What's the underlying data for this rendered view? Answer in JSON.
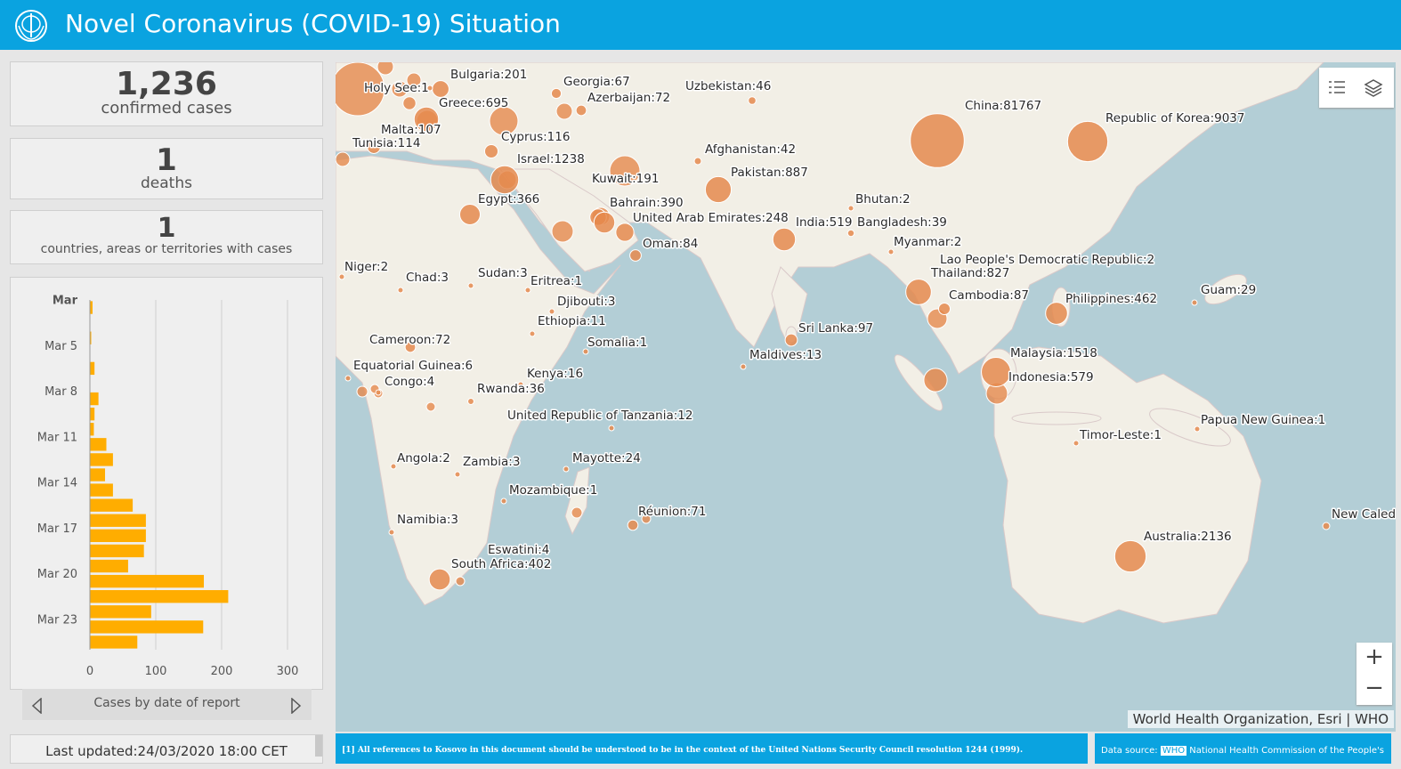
{
  "header": {
    "title": "Novel Coronavirus (COVID-19) Situation"
  },
  "stats": [
    {
      "number": "1,236",
      "caption": "confirmed cases"
    },
    {
      "number": "1",
      "caption": "deaths"
    },
    {
      "number": "1",
      "caption": "countries, areas or territories with cases"
    }
  ],
  "chart_data": {
    "type": "bar",
    "orientation": "horizontal",
    "title": "Cases by date of report",
    "categories": [
      "Mar",
      null,
      null,
      "Mar 5",
      null,
      null,
      "Mar 8",
      null,
      null,
      "Mar 11",
      null,
      null,
      "Mar 14",
      null,
      null,
      "Mar 17",
      null,
      null,
      "Mar 20",
      null,
      null,
      "Mar 23",
      null
    ],
    "values": [
      4,
      0,
      2,
      0,
      7,
      0,
      13,
      7,
      6,
      25,
      35,
      23,
      35,
      65,
      85,
      85,
      82,
      58,
      173,
      210,
      93,
      172,
      72
    ],
    "color": "#ffad00",
    "xlim": [
      0,
      300
    ],
    "xticks": [
      0,
      100,
      200,
      300
    ],
    "grid": true
  },
  "last_updated": "Last updated:24/03/2020 18:00 CET",
  "map": {
    "markers": [
      {
        "label": "Bulgaria:201",
        "value": 201
      },
      {
        "label": "Holy See:1",
        "value": 1
      },
      {
        "label": "Georgia:67",
        "value": 67
      },
      {
        "label": "Azerbaijan:72",
        "value": 72
      },
      {
        "label": "Uzbekistan:46",
        "value": 46
      },
      {
        "label": "Greece:695",
        "value": 695
      },
      {
        "label": "Malta:107",
        "value": 107
      },
      {
        "label": "Tunisia:114",
        "value": 114
      },
      {
        "label": "Cyprus:116",
        "value": 116
      },
      {
        "label": "Israel:1238",
        "value": 1238
      },
      {
        "label": "China:81767",
        "value": 81767
      },
      {
        "label": "Republic of Korea:9037",
        "value": 9037
      },
      {
        "label": "Afghanistan:42",
        "value": 42
      },
      {
        "label": "Kuwait:191",
        "value": 191
      },
      {
        "label": "Pakistan:887",
        "value": 887
      },
      {
        "label": "Egypt:366",
        "value": 366
      },
      {
        "label": "Bahrain:390",
        "value": 390
      },
      {
        "label": "Bhutan:2",
        "value": 2
      },
      {
        "label": "United Arab Emirates:248",
        "value": 248
      },
      {
        "label": "India:519",
        "value": 519
      },
      {
        "label": "Bangladesh:39",
        "value": 39
      },
      {
        "label": "Oman:84",
        "value": 84
      },
      {
        "label": "Myanmar:2",
        "value": 2
      },
      {
        "label": "Niger:2",
        "value": 2
      },
      {
        "label": "Chad:3",
        "value": 3
      },
      {
        "label": "Sudan:3",
        "value": 3
      },
      {
        "label": "Eritrea:1",
        "value": 1
      },
      {
        "label": "Lao People's Democratic Republic:2",
        "value": 2
      },
      {
        "label": "Thailand:827",
        "value": 827
      },
      {
        "label": "Guam:29",
        "value": 29
      },
      {
        "label": "Djibouti:3",
        "value": 3
      },
      {
        "label": "Cambodia:87",
        "value": 87
      },
      {
        "label": "Philippines:462",
        "value": 462
      },
      {
        "label": "Ethiopia:11",
        "value": 11
      },
      {
        "label": "Sri Lanka:97",
        "value": 97
      },
      {
        "label": "Cameroon:72",
        "value": 72
      },
      {
        "label": "Somalia:1",
        "value": 1
      },
      {
        "label": "Malaysia:1518",
        "value": 1518
      },
      {
        "label": "Maldives:13",
        "value": 13
      },
      {
        "label": "Equatorial Guinea:6",
        "value": 6
      },
      {
        "label": "Kenya:16",
        "value": 16
      },
      {
        "label": "Congo:4",
        "value": 4
      },
      {
        "label": "Indonesia:579",
        "value": 579
      },
      {
        "label": "Rwanda:36",
        "value": 36
      },
      {
        "label": "United Republic of Tanzania:12",
        "value": 12
      },
      {
        "label": "Papua New Guinea:1",
        "value": 1
      },
      {
        "label": "Timor-Leste:1",
        "value": 1
      },
      {
        "label": "Angola:2",
        "value": 2
      },
      {
        "label": "Zambia:3",
        "value": 3
      },
      {
        "label": "Mayotte:24",
        "value": 24
      },
      {
        "label": "Mozambique:1",
        "value": 1
      },
      {
        "label": "Réunion:71",
        "value": 71
      },
      {
        "label": "Namibia:3",
        "value": 3
      },
      {
        "label": "New Caled"
      },
      {
        "label": "Eswatini:4",
        "value": 4
      },
      {
        "label": "Australia:2136",
        "value": 2136
      },
      {
        "label": "South Africa:402",
        "value": 402
      }
    ],
    "attribution": "World Health Organization, Esri | WHO",
    "zoom_in": "+",
    "zoom_out": "−"
  },
  "footer": {
    "note": "[1] All references to Kosovo in this document should be understood to be in the context of the United Nations Security Council resolution 1244 (1999).",
    "source_label": "Data source:",
    "source_link": "WHO",
    "source_text": "National Health Commission of the People's"
  }
}
